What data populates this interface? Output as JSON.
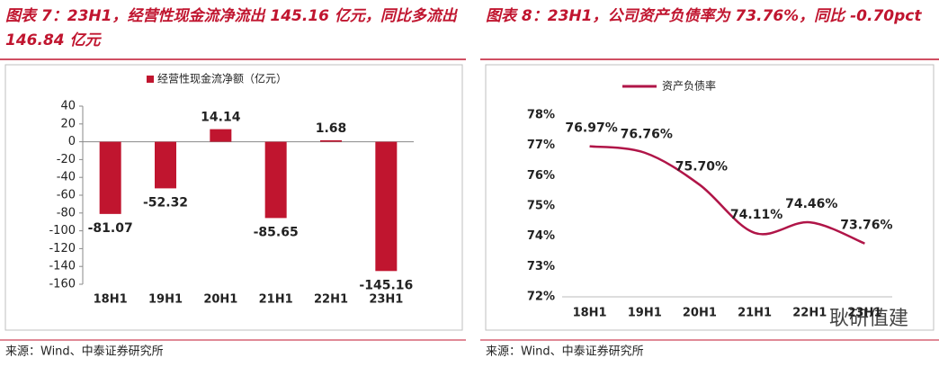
{
  "chart_data": [
    {
      "type": "bar",
      "title": "图表 7：23H1，经营性现金流净流出 145.16 亿元，同比多流出 146.84 亿元",
      "categories": [
        "18H1",
        "19H1",
        "20H1",
        "21H1",
        "22H1",
        "23H1"
      ],
      "series": [
        {
          "name": "经营性现金流净额（亿元）",
          "color": "#c0152f",
          "values": [
            -81.07,
            -52.32,
            14.14,
            -85.65,
            1.68,
            -145.16
          ]
        }
      ],
      "ylim": [
        -160,
        40
      ],
      "yticks": [
        -160,
        -140,
        -120,
        -100,
        -80,
        -60,
        -40,
        -20,
        0,
        20,
        40
      ],
      "source": "来源：Wind、中泰证券研究所"
    },
    {
      "type": "line",
      "title": "图表 8：23H1，公司资产负债率为 73.76%，同比 -0.70pct",
      "categories": [
        "18H1",
        "19H1",
        "20H1",
        "21H1",
        "22H1",
        "23H1"
      ],
      "series": [
        {
          "name": "资产负债率",
          "color": "#b01548",
          "values": [
            76.97,
            76.76,
            75.7,
            74.11,
            74.46,
            73.76
          ],
          "value_labels": [
            "76.97%",
            "76.76%",
            "75.70%",
            "74.11%",
            "74.46%",
            "73.76%"
          ]
        }
      ],
      "ylim": [
        72,
        78
      ],
      "yticks": [
        {
          "value": 72,
          "label": "72%"
        },
        {
          "value": 73,
          "label": "73%"
        },
        {
          "value": 74,
          "label": "74%"
        },
        {
          "value": 75,
          "label": "75%"
        },
        {
          "value": 76,
          "label": "76%"
        },
        {
          "value": 77,
          "label": "77%"
        },
        {
          "value": 78,
          "label": "78%"
        }
      ],
      "source": "来源：Wind、中泰证券研究所",
      "watermark": "耿研值建"
    }
  ]
}
